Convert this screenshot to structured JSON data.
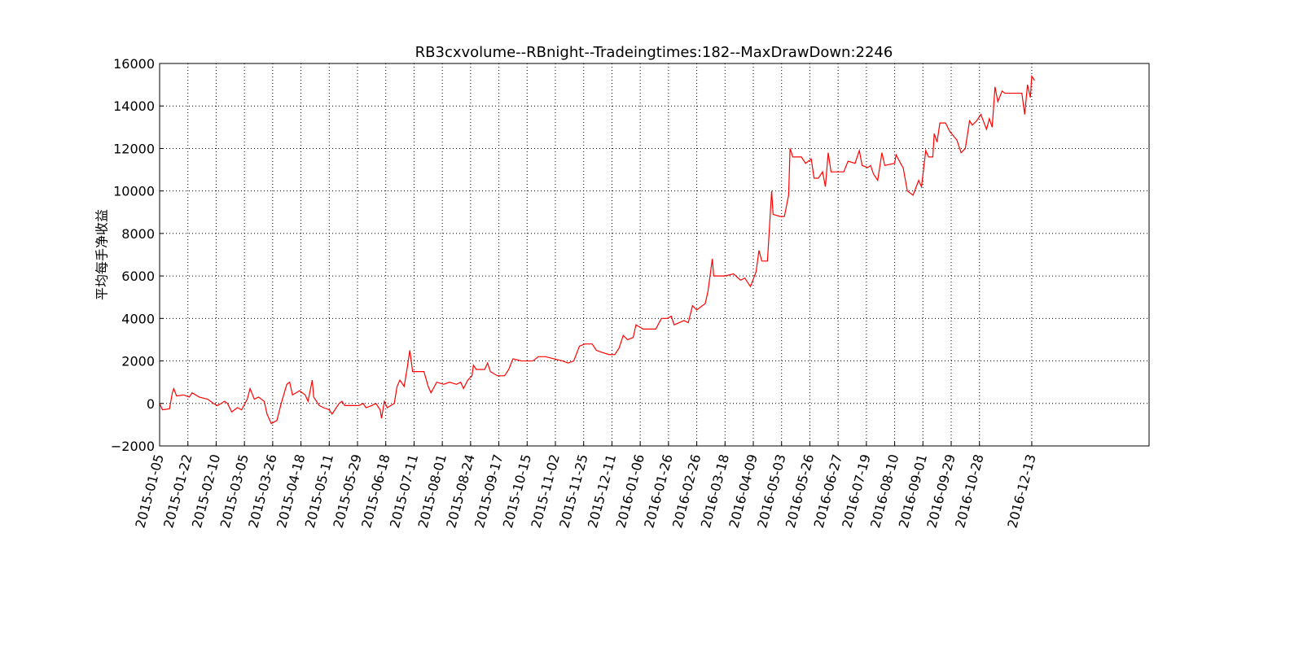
{
  "chart_data": {
    "type": "line",
    "title": "RB3cxvolume--RBnight--Tradeingtimes:182--MaxDrawDown:2246",
    "y_label": "平均每手净收益",
    "color": "#ff0000",
    "grid": true,
    "xlim": [
      0,
      700
    ],
    "ylim": [
      -2000,
      16000
    ],
    "yticks": [
      {
        "value": -2000,
        "label": "−2000"
      },
      0,
      2000,
      4000,
      6000,
      8000,
      10000,
      12000,
      14000,
      16000
    ],
    "xticks": [
      {
        "value": 0,
        "label": "2015-01-05"
      },
      {
        "value": 20,
        "label": "2015-01-22"
      },
      {
        "value": 40,
        "label": "2015-02-10"
      },
      {
        "value": 60,
        "label": "2015-03-05"
      },
      {
        "value": 80,
        "label": "2015-03-26"
      },
      {
        "value": 100,
        "label": "2015-04-18"
      },
      {
        "value": 120,
        "label": "2015-05-11"
      },
      {
        "value": 140,
        "label": "2015-05-29"
      },
      {
        "value": 160,
        "label": "2015-06-18"
      },
      {
        "value": 180,
        "label": "2015-07-11"
      },
      {
        "value": 200,
        "label": "2015-08-01"
      },
      {
        "value": 220,
        "label": "2015-08-24"
      },
      {
        "value": 240,
        "label": "2015-09-17"
      },
      {
        "value": 260,
        "label": "2015-10-15"
      },
      {
        "value": 280,
        "label": "2015-11-02"
      },
      {
        "value": 300,
        "label": "2015-11-25"
      },
      {
        "value": 320,
        "label": "2015-12-11"
      },
      {
        "value": 340,
        "label": "2016-01-06"
      },
      {
        "value": 360,
        "label": "2016-01-26"
      },
      {
        "value": 380,
        "label": "2016-02-26"
      },
      {
        "value": 400,
        "label": "2016-03-18"
      },
      {
        "value": 420,
        "label": "2016-04-09"
      },
      {
        "value": 440,
        "label": "2016-05-03"
      },
      {
        "value": 460,
        "label": "2016-05-26"
      },
      {
        "value": 480,
        "label": "2016-06-27"
      },
      {
        "value": 500,
        "label": "2016-07-19"
      },
      {
        "value": 520,
        "label": "2016-08-10"
      },
      {
        "value": 540,
        "label": "2016-09-01"
      },
      {
        "value": 560,
        "label": "2016-09-29"
      },
      {
        "value": 580,
        "label": "2016-10-28"
      },
      {
        "value": 617,
        "label": "2016-12-13"
      }
    ],
    "x": [
      0,
      2,
      7,
      9,
      10,
      12,
      17,
      21,
      23,
      28,
      34,
      38,
      41,
      46,
      48,
      51,
      55,
      58,
      62,
      64,
      67,
      70,
      74,
      76,
      79,
      83,
      86,
      90,
      92,
      94,
      99,
      103,
      105,
      108,
      109,
      113,
      116,
      120,
      122,
      127,
      129,
      131,
      136,
      141,
      144,
      146,
      150,
      153,
      156,
      157,
      159,
      161,
      166,
      168,
      170,
      173,
      175,
      177,
      179,
      184,
      187,
      190,
      192,
      196,
      201,
      205,
      210,
      213,
      215,
      218,
      221,
      222,
      224,
      230,
      232,
      234,
      239,
      244,
      247,
      250,
      256,
      264,
      268,
      273,
      279,
      285,
      289,
      293,
      297,
      301,
      306,
      309,
      313,
      318,
      322,
      325,
      328,
      331,
      335,
      337,
      342,
      351,
      355,
      359,
      362,
      364,
      371,
      374,
      377,
      380,
      386,
      388,
      391,
      392,
      400,
      406,
      411,
      414,
      418,
      422,
      424,
      426,
      430,
      433,
      434,
      439,
      442,
      445,
      446,
      448,
      454,
      457,
      461,
      463,
      466,
      469,
      471,
      473,
      475,
      484,
      487,
      492,
      495,
      497,
      501,
      503,
      505,
      508,
      511,
      513,
      520,
      521,
      525,
      526,
      529,
      533,
      537,
      539,
      542,
      544,
      547,
      548,
      550,
      552,
      556,
      559,
      564,
      567,
      570,
      573,
      575,
      578,
      581,
      585,
      587,
      589,
      591,
      593,
      596,
      598,
      610,
      612,
      614,
      616,
      617,
      619
    ],
    "values": [
      0,
      -300,
      -250,
      500,
      700,
      350,
      400,
      300,
      500,
      300,
      200,
      0,
      -100,
      100,
      0,
      -400,
      -200,
      -300,
      200,
      700,
      200,
      300,
      100,
      -500,
      -950,
      -800,
      0,
      900,
      1000,
      400,
      600,
      400,
      100,
      1100,
      300,
      -100,
      -200,
      -300,
      -500,
      0,
      100,
      -100,
      -100,
      -100,
      0,
      -200,
      -100,
      0,
      -300,
      -700,
      100,
      -200,
      0,
      800,
      1100,
      800,
      1600,
      2500,
      1500,
      1500,
      1500,
      800,
      500,
      1000,
      900,
      1000,
      900,
      1000,
      700,
      1100,
      1300,
      1800,
      1600,
      1600,
      1900,
      1500,
      1300,
      1300,
      1600,
      2100,
      2000,
      2000,
      2200,
      2200,
      2100,
      2000,
      1900,
      2000,
      2700,
      2800,
      2800,
      2500,
      2400,
      2300,
      2300,
      2600,
      3200,
      3000,
      3100,
      3700,
      3500,
      3500,
      4000,
      4000,
      4100,
      3700,
      3900,
      3800,
      4600,
      4400,
      4700,
      5300,
      6800,
      6000,
      6000,
      6100,
      5800,
      5900,
      5500,
      6200,
      7200,
      6700,
      6700,
      10000,
      8900,
      8800,
      8800,
      9800,
      12000,
      11600,
      11600,
      11300,
      11500,
      10600,
      10600,
      10900,
      10200,
      11800,
      10900,
      10900,
      11400,
      11300,
      11900,
      11200,
      11100,
      11200,
      10800,
      10500,
      11800,
      11200,
      11300,
      11700,
      11200,
      11100,
      10000,
      9800,
      10500,
      10200,
      11900,
      11600,
      11600,
      12700,
      12300,
      13200,
      13200,
      12800,
      12400,
      11800,
      12000,
      13300,
      13100,
      13300,
      13600,
      12900,
      13400,
      13000,
      14900,
      14200,
      14700,
      14600,
      14600,
      13600,
      15000,
      14400,
      15400,
      15200
    ]
  }
}
